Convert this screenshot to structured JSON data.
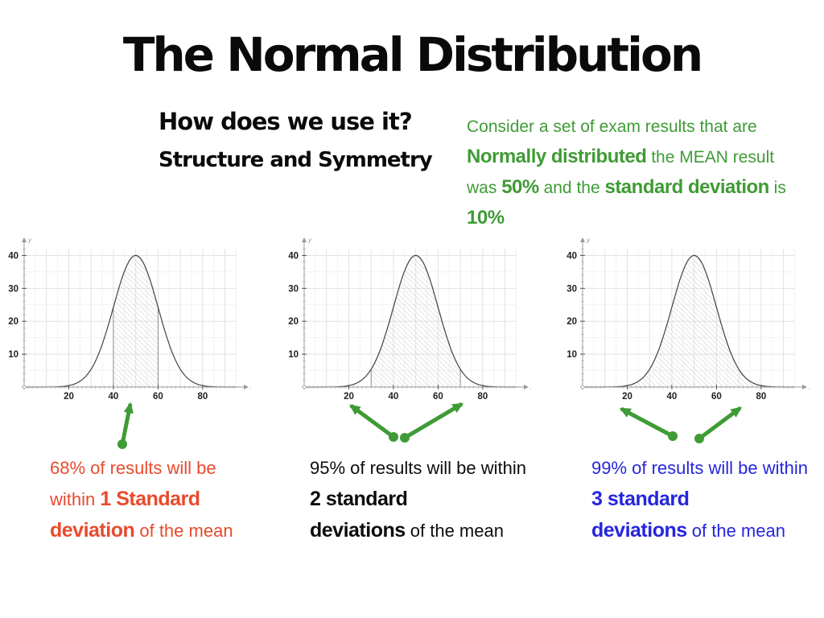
{
  "slide": {
    "title": "The Normal Distribution",
    "subtitle1": "How does we use it?",
    "subtitle2": "Structure and Symmetry",
    "colors": {
      "green": "#3f9b35",
      "orange": "#e84a2d",
      "blue": "#2525dd",
      "black": "#0d0d0d",
      "curve": "#444444",
      "hatch": "#c9c9c9",
      "axis": "#999999"
    },
    "intro": {
      "color": "#3f9b35",
      "lines": [
        [
          {
            "t": "Consider a set of exam results that are"
          }
        ],
        [
          {
            "t": "Normally distributed",
            "b": true
          },
          {
            "t": " the MEAN result"
          }
        ],
        [
          {
            "t": "was "
          },
          {
            "t": "50%",
            "b": true
          },
          {
            "t": " and the "
          },
          {
            "t": "standard deviation",
            "b": true
          },
          {
            "t": " is"
          }
        ],
        [
          {
            "t": "10%",
            "b": true
          }
        ]
      ]
    },
    "captions": {
      "left": {
        "color": "#e84a2d",
        "lines": [
          [
            {
              "t": "68% of results will be"
            }
          ],
          [
            {
              "t": "within "
            },
            {
              "t": "1 Standard",
              "b": true
            }
          ],
          [
            {
              "t": "deviation",
              "b": true
            },
            {
              "t": " of the mean"
            }
          ]
        ]
      },
      "middle": {
        "color": "#0d0d0d",
        "lines": [
          [
            {
              "t": "95% of results will be within"
            }
          ],
          [
            {
              "t": "2 standard",
              "b": true
            }
          ],
          [
            {
              "t": "deviations",
              "b": true
            },
            {
              "t": " of the mean"
            }
          ]
        ]
      },
      "right": {
        "color": "#2525dd",
        "lines": [
          [
            {
              "t": "99% of results will be within"
            }
          ],
          [
            {
              "t": "3 standard",
              "b": true
            }
          ],
          [
            {
              "t": "deviations",
              "b": true
            },
            {
              "t": " of the mean"
            }
          ]
        ]
      }
    }
  },
  "chart_data": [
    {
      "type": "area",
      "title": "Normal curve shaded within 1 standard deviation",
      "curve": {
        "kind": "gaussian",
        "mean": 50,
        "sd": 10,
        "peak": 40
      },
      "shaded_interval": [
        40,
        60
      ],
      "shaded_percent": "68%",
      "x": {
        "min": 0,
        "max": 97,
        "ticks": [
          20,
          40,
          60,
          80
        ],
        "label": "x"
      },
      "y": {
        "min": 0,
        "max": 45,
        "ticks": [
          10,
          20,
          30,
          40
        ],
        "label": "y"
      },
      "grid": {
        "minor": 5,
        "major": 10,
        "xmax": 95,
        "ymax": 42
      }
    },
    {
      "type": "area",
      "title": "Normal curve shaded within 2 standard deviations",
      "curve": {
        "kind": "gaussian",
        "mean": 50,
        "sd": 10,
        "peak": 40
      },
      "shaded_interval": [
        30,
        70
      ],
      "shaded_percent": "95%",
      "x": {
        "min": 0,
        "max": 97,
        "ticks": [
          20,
          40,
          60,
          80
        ],
        "label": "x"
      },
      "y": {
        "min": 0,
        "max": 45,
        "ticks": [
          10,
          20,
          30,
          40
        ],
        "label": "y"
      },
      "grid": {
        "minor": 5,
        "major": 10,
        "xmax": 95,
        "ymax": 42
      }
    },
    {
      "type": "area",
      "title": "Normal curve shaded within 3 standard deviations",
      "curve": {
        "kind": "gaussian",
        "mean": 50,
        "sd": 10,
        "peak": 40
      },
      "shaded_interval": [
        20,
        80
      ],
      "shaded_percent": "99%",
      "x": {
        "min": 0,
        "max": 97,
        "ticks": [
          20,
          40,
          60,
          80
        ],
        "label": "x"
      },
      "y": {
        "min": 0,
        "max": 45,
        "ticks": [
          10,
          20,
          30,
          40
        ],
        "label": "y"
      },
      "grid": {
        "minor": 5,
        "major": 10,
        "xmax": 95,
        "ymax": 42
      }
    }
  ],
  "annotations": {
    "arrow_color": "#3f9b35",
    "arrows": [
      {
        "chart": 0,
        "from": [
          152,
          552
        ],
        "to": [
          162,
          502
        ]
      },
      {
        "chart": 1,
        "from": [
          489,
          543
        ],
        "to": [
          436,
          504
        ]
      },
      {
        "chart": 1,
        "from": [
          503,
          544
        ],
        "to": [
          574,
          502
        ]
      },
      {
        "chart": 2,
        "from": [
          836,
          542
        ],
        "to": [
          772,
          508
        ]
      },
      {
        "chart": 2,
        "from": [
          869,
          545
        ],
        "to": [
          920,
          507
        ]
      }
    ]
  }
}
